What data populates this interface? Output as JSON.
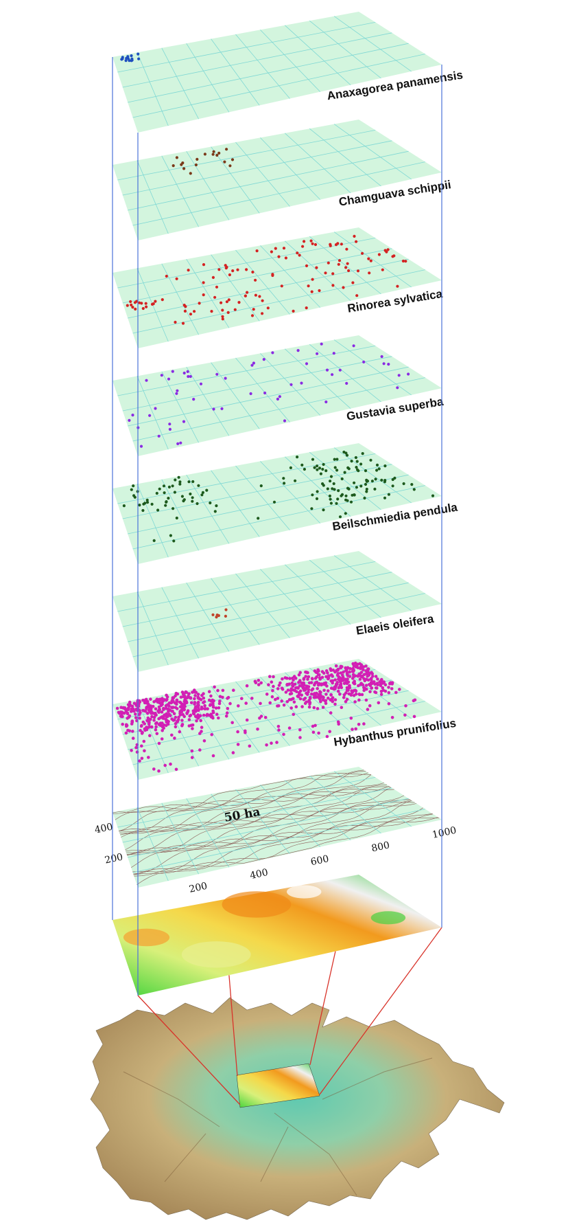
{
  "colors": {
    "plane_fill": "#d3f5de",
    "grid": "#7fd8d4",
    "vertical_lines": "#4a72d8",
    "zoom_lines": "#d8332a",
    "contour": "#8a5a55"
  },
  "layers": [
    {
      "species": "Anaxagorea panamensis",
      "dot_color": "#1e4fbf"
    },
    {
      "species": "Chamguava schippii",
      "dot_color": "#7a3a1a"
    },
    {
      "species": "Rinorea sylvatica",
      "dot_color": "#d42222"
    },
    {
      "species": "Gustavia superba",
      "dot_color": "#8a2be2"
    },
    {
      "species": "Beilschmiedia pendula",
      "dot_color": "#1d5a1d"
    },
    {
      "species": "Elaeis oleifera",
      "dot_color": "#c0442a"
    },
    {
      "species": "Hybanthus prunifolius",
      "dot_color": "#d21fb4"
    }
  ],
  "topography": {
    "area_label": "50 ha",
    "y_ticks": [
      "200",
      "400"
    ],
    "x_ticks": [
      "200",
      "400",
      "600",
      "800",
      "1000"
    ]
  }
}
